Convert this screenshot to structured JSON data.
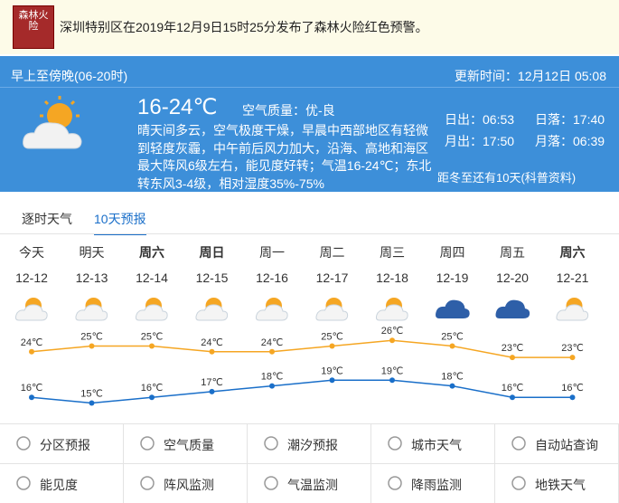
{
  "alert": {
    "icon_text": "森林火险",
    "message": "深圳特别区在2019年12月9日15时25分发布了森林火险红色预警。"
  },
  "today": {
    "period": "早上至傍晚(06-20时)",
    "update_time": "更新时间：12月12日 05:08",
    "temperature": "16-24℃",
    "air_quality": "空气质量：优-良",
    "description": "晴天间多云，空气极度干燥，早晨中西部地区有轻微到轻度灰霾，中午前后风力加大，沿海、高地和海区最大阵风6级左右，能见度好转；气温16-24℃；东北转东风3-4级，相对湿度35%-75%",
    "sunrise": "日出：06:53",
    "sunset": "日落：17:40",
    "moonrise": "月出：17:50",
    "moonset": "月落：06:39",
    "solar_term": "距冬至还有10天(科普资料)"
  },
  "tabs": [
    "逐时天气",
    "10天预报"
  ],
  "forecast": {
    "days": [
      "今天",
      "明天",
      "周六",
      "周日",
      "周一",
      "周二",
      "周三",
      "周四",
      "周五",
      "周六"
    ],
    "dates": [
      "12-12",
      "12-13",
      "12-14",
      "12-15",
      "12-16",
      "12-17",
      "12-18",
      "12-19",
      "12-20",
      "12-21"
    ],
    "high": {
      "color": "#f5a623",
      "values": [
        24,
        25,
        25,
        24,
        24,
        25,
        26,
        25,
        23,
        23
      ],
      "value_labels": [
        "24℃",
        "25℃",
        "25℃",
        "24℃",
        "24℃",
        "25℃",
        "26℃",
        "25℃",
        "23℃",
        "23℃"
      ]
    },
    "low": {
      "color": "#1a6fc9",
      "values": [
        16,
        15,
        16,
        17,
        18,
        19,
        19,
        18,
        16,
        16
      ],
      "value_labels": [
        "16℃",
        "15℃",
        "16℃",
        "17℃",
        "18℃",
        "19℃",
        "19℃",
        "18℃",
        "16℃",
        "16℃"
      ]
    }
  },
  "menu": [
    "分区预报",
    "空气质量",
    "潮汐预报",
    "城市天气",
    "自动站查询",
    "能见度",
    "阵风监测",
    "气温监测",
    "降雨监测",
    "地铁天气"
  ]
}
